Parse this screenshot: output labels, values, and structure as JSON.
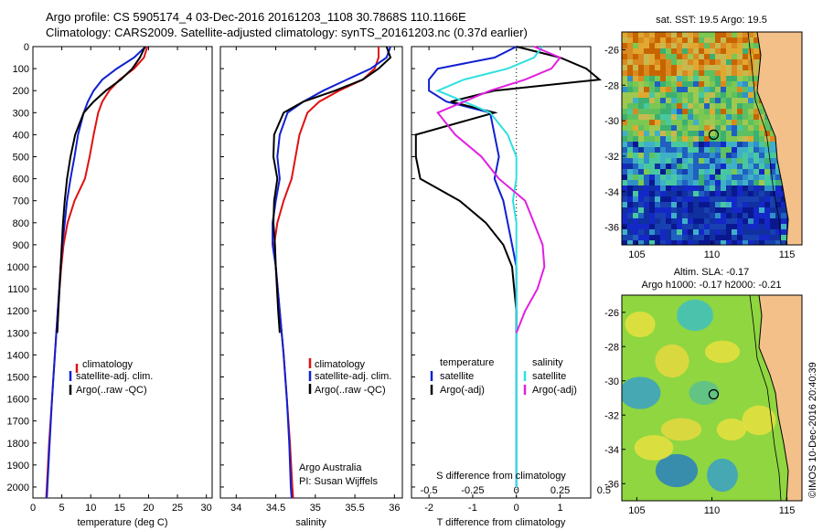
{
  "header": {
    "line1": "Argo profile: CS 5905174_4 03-Dec-2016 20161203_1108 30.7868S 110.1166E",
    "line2": "Climatology: CARS2009. Satellite-adjusted climatology: synTS_20161203.nc (0.37d earlier)"
  },
  "side_credit": "©IMOS 10-Dec-2016 20:40:39",
  "colors": {
    "climatology": "#e01010",
    "satellite": "#1020d0",
    "argo": "#000000",
    "sal_satellite": "#30e0e0",
    "sal_argo": "#e020e0",
    "land": "#f4c08a"
  },
  "chart_data": [
    {
      "type": "line",
      "panel": "temperature",
      "xlabel": "temperature (deg C)",
      "xlim": [
        0,
        31
      ],
      "xticks": [
        0,
        5,
        10,
        15,
        20,
        25,
        30
      ],
      "ylim": [
        2050,
        0
      ],
      "yticks": [
        0,
        100,
        200,
        300,
        400,
        500,
        600,
        700,
        800,
        900,
        1000,
        1100,
        1200,
        1300,
        1400,
        1500,
        1600,
        1700,
        1800,
        1900,
        2000
      ],
      "legend": [
        "climatology",
        "satellite-adj. clim.",
        "Argo(..raw -QC)"
      ],
      "series": [
        {
          "name": "climatology",
          "color": "#e01010",
          "depth": [
            0,
            50,
            100,
            150,
            200,
            250,
            300,
            400,
            500,
            600,
            700,
            800,
            900,
            1000,
            1200,
            1400,
            1600,
            1800,
            2000,
            2050
          ],
          "values": [
            19.8,
            19.2,
            17.5,
            15.0,
            13.2,
            12.0,
            11.3,
            10.5,
            9.8,
            9.0,
            7.2,
            6.0,
            5.3,
            4.9,
            4.3,
            3.8,
            3.3,
            2.8,
            2.4,
            2.3
          ]
        },
        {
          "name": "satellite-adj. clim.",
          "color": "#1020d0",
          "depth": [
            0,
            50,
            100,
            150,
            200,
            250,
            300,
            400,
            500,
            600,
            700,
            800,
            900,
            1000,
            1200,
            1400,
            1600,
            1800,
            2000,
            2050
          ],
          "values": [
            19.5,
            17.5,
            14.5,
            12.0,
            10.5,
            9.5,
            8.8,
            7.8,
            7.2,
            6.5,
            5.9,
            5.5,
            5.1,
            4.8,
            4.3,
            3.8,
            3.3,
            2.9,
            2.5,
            2.4
          ]
        },
        {
          "name": "Argo(..raw -QC)",
          "color": "#000000",
          "depth": [
            0,
            50,
            100,
            150,
            200,
            250,
            300,
            400,
            500,
            600,
            700,
            800,
            900,
            1000,
            1200,
            1300
          ],
          "values": [
            19.4,
            18.5,
            17.2,
            15.2,
            12.6,
            10.5,
            8.8,
            7.3,
            6.5,
            5.9,
            5.5,
            5.2,
            5.0,
            4.8,
            4.4,
            4.2
          ]
        }
      ]
    },
    {
      "type": "line",
      "panel": "salinity",
      "xlabel": "salinity",
      "xlim": [
        33.8,
        36.1
      ],
      "xticks": [
        34,
        34.5,
        35,
        35.5,
        36
      ],
      "ylim": [
        2050,
        0
      ],
      "legend": [
        "climatology",
        "satellite-adj. clim.",
        "Argo(..raw -QC)"
      ],
      "annotation": [
        "Argo Australia",
        "PI: Susan Wijffels"
      ],
      "series": [
        {
          "name": "climatology",
          "color": "#e01010",
          "depth": [
            0,
            50,
            100,
            150,
            200,
            250,
            300,
            400,
            500,
            600,
            700,
            800,
            900,
            1000,
            1200,
            1400,
            1600,
            1800,
            2000,
            2050
          ],
          "values": [
            35.8,
            35.8,
            35.75,
            35.6,
            35.3,
            35.05,
            34.9,
            34.8,
            34.75,
            34.7,
            34.6,
            34.52,
            34.48,
            34.5,
            34.55,
            34.6,
            34.64,
            34.68,
            34.71,
            34.72
          ]
        },
        {
          "name": "satellite-adj. clim.",
          "color": "#1020d0",
          "depth": [
            0,
            50,
            100,
            150,
            200,
            250,
            300,
            400,
            500,
            600,
            700,
            800,
            900,
            1000,
            1200,
            1400,
            1600,
            1800,
            2000,
            2050
          ],
          "values": [
            35.95,
            35.9,
            35.7,
            35.4,
            35.1,
            34.85,
            34.65,
            34.55,
            34.52,
            34.55,
            34.5,
            34.46,
            34.46,
            34.5,
            34.55,
            34.6,
            34.64,
            34.67,
            34.69,
            34.7
          ]
        },
        {
          "name": "Argo(..raw -QC)",
          "color": "#000000",
          "depth": [
            0,
            50,
            100,
            150,
            200,
            250,
            300,
            400,
            500,
            600,
            700,
            800,
            900,
            1000,
            1200,
            1300
          ],
          "values": [
            35.9,
            35.95,
            35.8,
            35.6,
            35.25,
            34.85,
            34.6,
            34.48,
            34.47,
            34.52,
            34.48,
            34.47,
            34.49,
            34.5,
            34.53,
            34.55
          ]
        }
      ]
    },
    {
      "type": "line",
      "panel": "difference",
      "xlabel": "T difference from climatology",
      "xlabel_top": "S difference from climatology",
      "xlim": [
        -2.4,
        1.7
      ],
      "xticks": [
        -2,
        -1,
        0,
        1
      ],
      "xticks_top": [
        -0.5,
        -0.25,
        0,
        0.25,
        0.5
      ],
      "ylim": [
        2050,
        0
      ],
      "legend_headers": [
        "temperature",
        "salinity"
      ],
      "legend": [
        "satellite",
        "Argo(-adj)",
        "satellite",
        "Argo(-adj)"
      ],
      "series": [
        {
          "name": "satellite",
          "group": "temperature",
          "color": "#1020d0",
          "depth": [
            0,
            50,
            100,
            150,
            200,
            250,
            300,
            400,
            500,
            600,
            700,
            800,
            900,
            1000,
            1200,
            1400,
            1600,
            1800,
            2000
          ],
          "values": [
            0,
            -0.5,
            -1.8,
            -2.0,
            -2.0,
            -1.6,
            -0.6,
            -0.5,
            -0.4,
            -0.5,
            -0.3,
            -0.2,
            -0.1,
            0,
            0,
            0,
            0,
            0,
            0
          ]
        },
        {
          "name": "Argo(-adj)",
          "group": "temperature",
          "color": "#000000",
          "depth": [
            0,
            50,
            100,
            150,
            200,
            250,
            300,
            400,
            500,
            600,
            700,
            800,
            900,
            1000,
            1100,
            1200,
            1300
          ],
          "values": [
            0,
            1.0,
            1.6,
            1.9,
            -0.5,
            -1.5,
            -0.5,
            -2.3,
            -2.3,
            -2.2,
            -1.3,
            -0.7,
            -0.3,
            -0.1,
            -0.05,
            0,
            0
          ]
        },
        {
          "name": "satellite",
          "group": "salinity",
          "color": "#30e0e0",
          "depth": [
            0,
            50,
            100,
            150,
            200,
            250,
            300,
            400,
            500,
            600,
            700,
            800,
            900,
            1000,
            1200,
            1400,
            1600,
            1800,
            2000
          ],
          "values": [
            0.15,
            0.1,
            -0.05,
            -0.3,
            -0.45,
            -0.3,
            -0.15,
            -0.05,
            0,
            0,
            -0.02,
            0,
            0,
            0,
            0,
            0,
            0,
            0,
            0
          ]
        },
        {
          "name": "Argo(-adj)",
          "group": "salinity",
          "color": "#e020e0",
          "depth": [
            0,
            50,
            100,
            150,
            200,
            250,
            300,
            400,
            500,
            600,
            700,
            800,
            900,
            1000,
            1100,
            1200,
            1300
          ],
          "values": [
            0.1,
            0.25,
            0.2,
            0.05,
            -0.15,
            -0.3,
            -0.45,
            -0.35,
            -0.2,
            -0.1,
            0.05,
            0.1,
            0.15,
            0.16,
            0.12,
            0.05,
            0
          ]
        }
      ]
    },
    {
      "type": "heatmap",
      "panel": "satellite SST",
      "title": "sat. SST: 19.5  Argo: 19.5",
      "xlim": [
        104,
        116
      ],
      "ylim": [
        -37,
        -25
      ],
      "xticks": [
        105,
        110,
        115
      ],
      "yticks": [
        -26,
        -28,
        -30,
        -32,
        -34,
        -36
      ],
      "marker": {
        "lon": 110.1166,
        "lat": -30.7868
      }
    },
    {
      "type": "heatmap",
      "panel": "altimetry SLA",
      "title": "Altim. SLA: -0.17",
      "subtitle": "Argo h1000: -0.17 h2000: -0.21",
      "xlim": [
        104,
        116
      ],
      "ylim": [
        -37,
        -25
      ],
      "xticks": [
        105,
        110,
        115
      ],
      "yticks": [
        -26,
        -28,
        -30,
        -32,
        -34,
        -36
      ],
      "marker": {
        "lon": 110.1166,
        "lat": -30.7868
      }
    }
  ]
}
